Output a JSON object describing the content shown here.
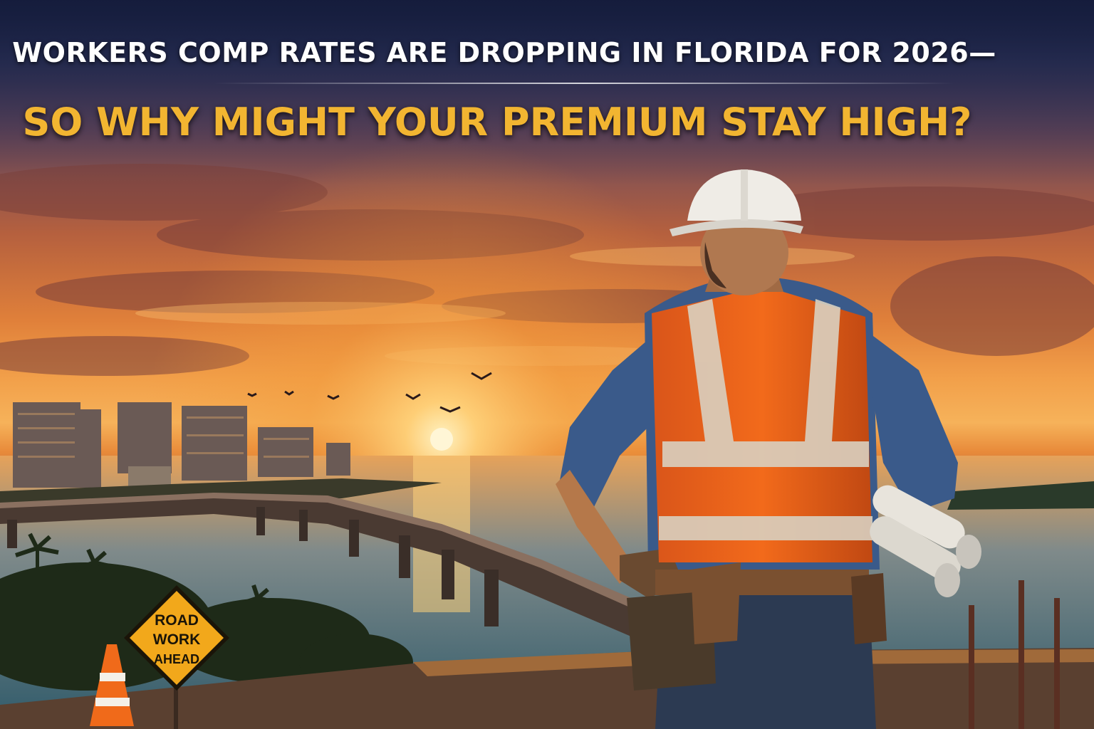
{
  "headline": {
    "line1": "WORKERS COMP RATES ARE DROPPING IN FLORIDA FOR 2026—",
    "line2": "SO WHY MIGHT YOUR PREMIUM STAY HIGH?"
  },
  "sign": {
    "line1": "ROAD",
    "line2": "WORK",
    "line3": "AHEAD"
  },
  "colors": {
    "headline_primary": "#ffffff",
    "headline_accent": "#f2b531",
    "vest": "#f26a1b",
    "sign": "#f2a81b"
  }
}
